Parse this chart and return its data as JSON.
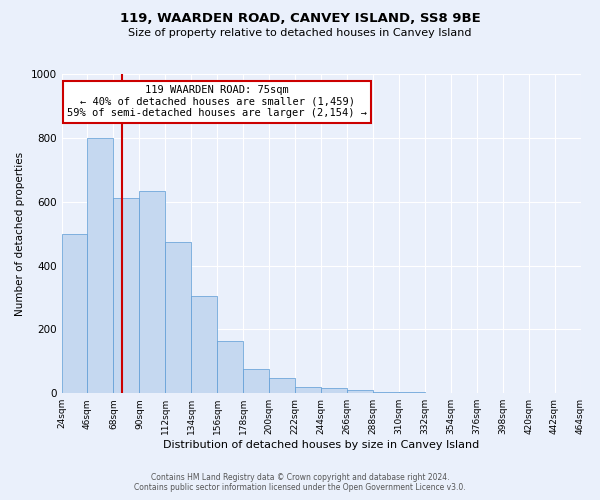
{
  "title": "119, WAARDEN ROAD, CANVEY ISLAND, SS8 9BE",
  "subtitle": "Size of property relative to detached houses in Canvey Island",
  "xlabel": "Distribution of detached houses by size in Canvey Island",
  "ylabel": "Number of detached properties",
  "bar_edges": [
    24,
    46,
    68,
    90,
    112,
    134,
    156,
    178,
    200,
    222,
    244,
    266,
    288,
    310,
    332,
    354,
    376,
    398,
    420,
    442,
    464
  ],
  "bar_heights": [
    500,
    800,
    610,
    635,
    475,
    305,
    162,
    75,
    48,
    20,
    15,
    10,
    5,
    3,
    2,
    2,
    1,
    1,
    1,
    0
  ],
  "bar_color": "#c5d8f0",
  "bar_edge_color": "#5b9bd5",
  "red_line_x": 75,
  "annotation_line1": "119 WAARDEN ROAD: 75sqm",
  "annotation_line2": "← 40% of detached houses are smaller (1,459)",
  "annotation_line3": "59% of semi-detached houses are larger (2,154) →",
  "annotation_box_color": "#ffffff",
  "annotation_box_edge_color": "#cc0000",
  "red_line_color": "#cc0000",
  "ylim": [
    0,
    1000
  ],
  "xlim": [
    24,
    464
  ],
  "tick_labels": [
    "24sqm",
    "46sqm",
    "68sqm",
    "90sqm",
    "112sqm",
    "134sqm",
    "156sqm",
    "178sqm",
    "200sqm",
    "222sqm",
    "244sqm",
    "266sqm",
    "288sqm",
    "310sqm",
    "332sqm",
    "354sqm",
    "376sqm",
    "398sqm",
    "420sqm",
    "442sqm",
    "464sqm"
  ],
  "footer_line1": "Contains HM Land Registry data © Crown copyright and database right 2024.",
  "footer_line2": "Contains public sector information licensed under the Open Government Licence v3.0.",
  "bg_color": "#eaf0fb",
  "grid_color": "#ffffff",
  "title_fontsize": 9.5,
  "subtitle_fontsize": 8,
  "ylabel_fontsize": 7.5,
  "xlabel_fontsize": 8,
  "tick_fontsize": 6.5,
  "ytick_fontsize": 7.5,
  "footer_fontsize": 5.5,
  "ann_fontsize": 7.5
}
